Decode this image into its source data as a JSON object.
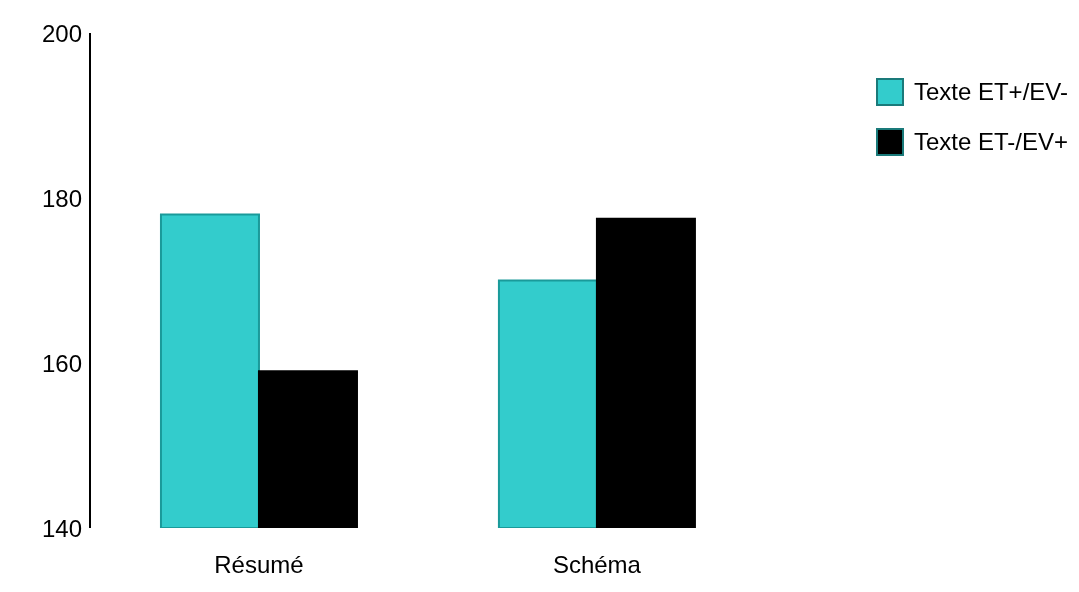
{
  "chart_data": {
    "type": "bar",
    "categories": [
      "Résumé",
      "Schéma"
    ],
    "series": [
      {
        "name": "Texte ET+/EV-",
        "color": "#33cccc",
        "values": [
          178,
          170
        ]
      },
      {
        "name": "Texte ET-/EV+",
        "color": "#000000",
        "values": [
          159,
          177.5
        ]
      }
    ],
    "ylim": [
      140,
      200
    ],
    "yticks": [
      140,
      160,
      180,
      200
    ],
    "legend": "top right"
  }
}
